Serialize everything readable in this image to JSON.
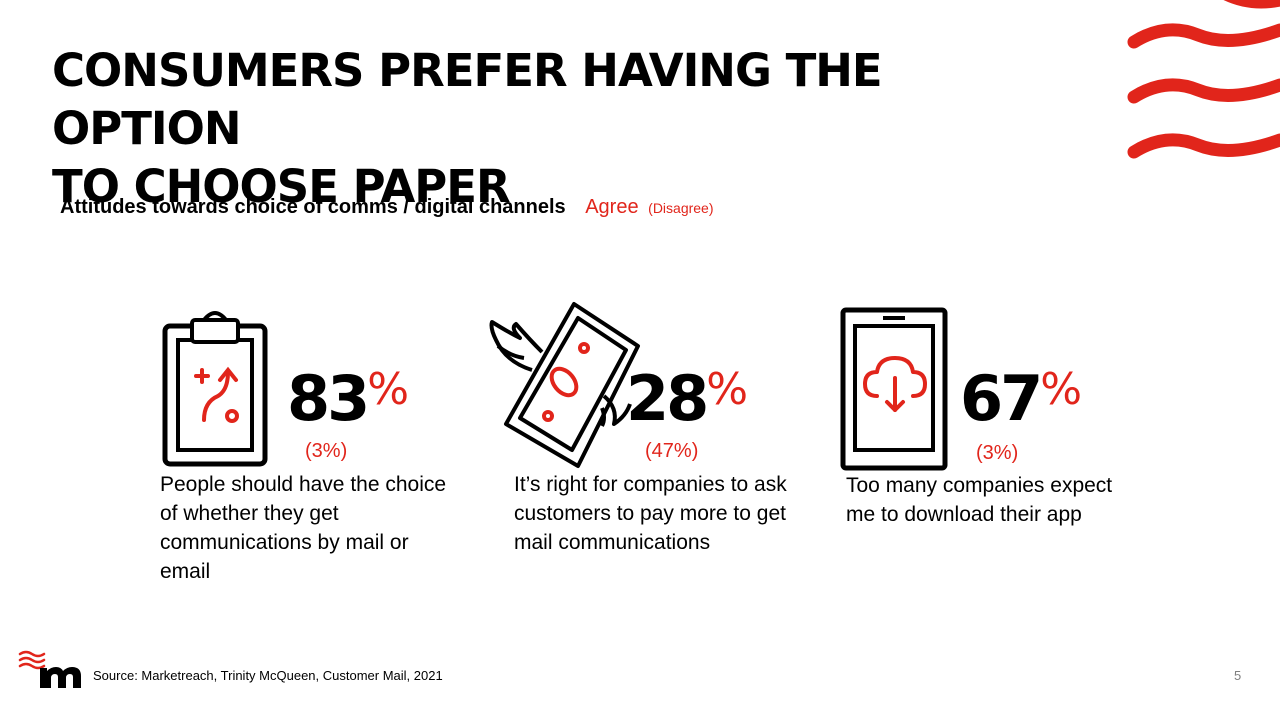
{
  "slide": {
    "title_line1": "CONSUMERS PREFER HAVING THE OPTION",
    "title_line2": "TO CHOOSE PAPER",
    "subtitle": "Attitudes towards choice of comms / digital channels",
    "legend_agree": "Agree",
    "legend_disagree": "(Disagree)",
    "source": "Source: Marketreach, Trinity McQueen, Customer Mail, 2021",
    "page_number": "5",
    "accent_color": "#e1251b"
  },
  "stats": [
    {
      "icon": "clipboard-route-icon",
      "agree": "83",
      "percent_sign": "%",
      "disagree": "(3%)",
      "description": "People should have the choice of whether they get communications by mail or email"
    },
    {
      "icon": "flying-money-icon",
      "agree": "28",
      "percent_sign": "%",
      "disagree": "(47%)",
      "description": "It’s right for companies to ask customers to pay more to get mail communications"
    },
    {
      "icon": "tablet-cloud-download-icon",
      "agree": "67",
      "percent_sign": "%",
      "disagree": "(3%)",
      "description": "Too many companies expect me to download their app"
    }
  ]
}
